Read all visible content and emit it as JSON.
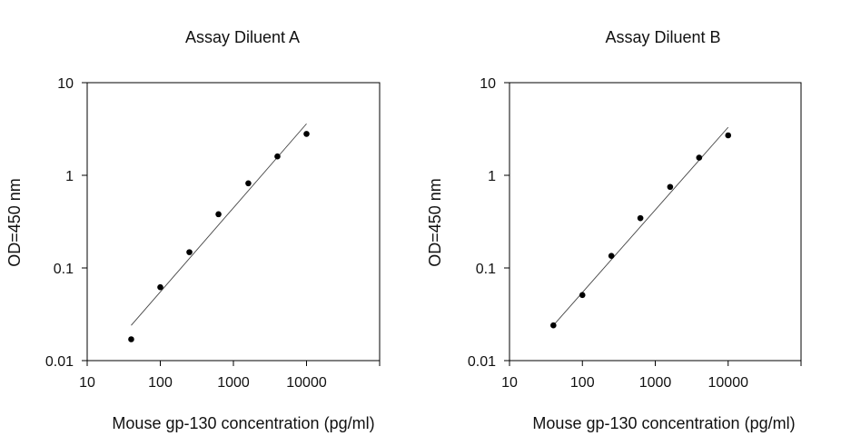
{
  "chart_data": [
    {
      "type": "scatter",
      "title": "Assay Diluent A",
      "xlabel": "Mouse gp-130 concentration (pg/ml)",
      "ylabel": "OD=450 nm",
      "xscale": "log",
      "yscale": "log",
      "xlim": [
        10,
        100000
      ],
      "ylim": [
        0.01,
        10
      ],
      "xticks": [
        "10",
        "100",
        "1000",
        "10000"
      ],
      "yticks": [
        "0.01",
        "0.1",
        "1",
        "10"
      ],
      "grid": false,
      "series": [
        {
          "x": [
            40,
            100,
            250,
            625,
            1600,
            4000,
            10000
          ],
          "y": [
            0.017,
            0.062,
            0.148,
            0.38,
            0.82,
            1.6,
            2.8
          ]
        }
      ],
      "fit_line": {
        "x": [
          40,
          10000
        ],
        "y": [
          0.024,
          3.6
        ]
      }
    },
    {
      "type": "scatter",
      "title": "Assay Diluent B",
      "xlabel": "Mouse gp-130 concentration (pg/ml)",
      "ylabel": "OD=450 nm",
      "xscale": "log",
      "yscale": "log",
      "xlim": [
        10,
        100000
      ],
      "ylim": [
        0.01,
        10
      ],
      "xticks": [
        "10",
        "100",
        "1000",
        "10000"
      ],
      "yticks": [
        "0.01",
        "0.1",
        "1",
        "10"
      ],
      "grid": false,
      "series": [
        {
          "x": [
            40,
            100,
            250,
            625,
            1600,
            4000,
            10000
          ],
          "y": [
            0.024,
            0.051,
            0.135,
            0.345,
            0.75,
            1.55,
            2.7
          ]
        }
      ],
      "fit_line": {
        "x": [
          40,
          10000
        ],
        "y": [
          0.024,
          3.3
        ]
      }
    }
  ]
}
